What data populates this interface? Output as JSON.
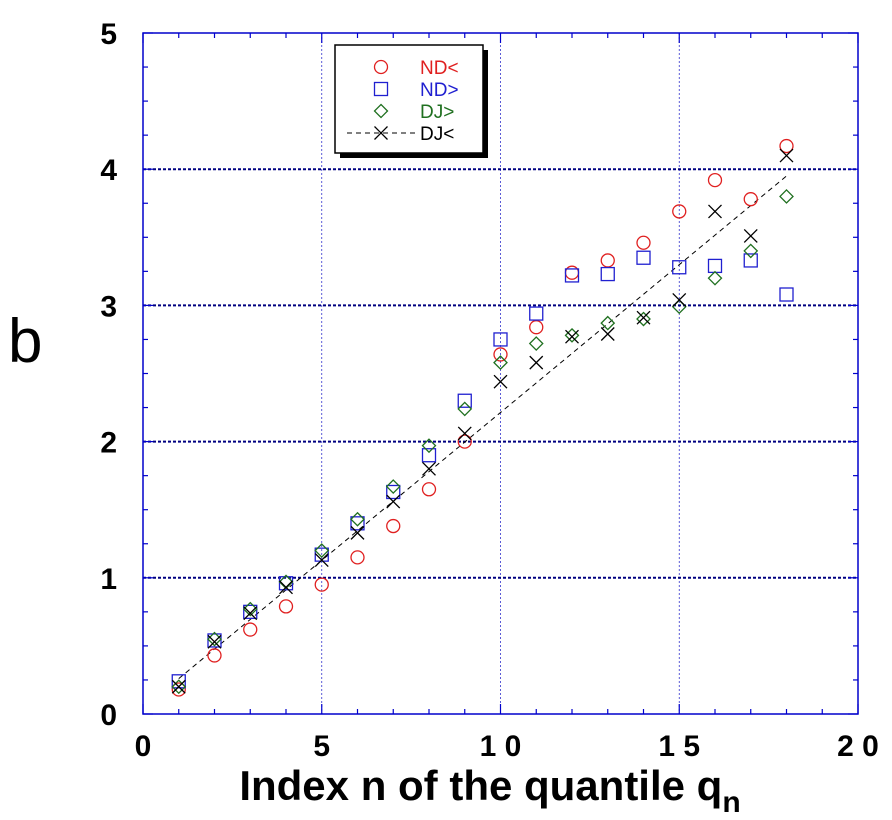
{
  "chart_data": {
    "type": "scatter",
    "xlabel": "Index n of the quantile q",
    "xlabel_subscript": "n",
    "ylabel": "b",
    "xlim": [
      0,
      20
    ],
    "ylim": [
      0,
      5
    ],
    "xticks": [
      0,
      5,
      10,
      15,
      20
    ],
    "xtick_labels": [
      "0",
      "5",
      "1 0",
      "1 5",
      "2 0"
    ],
    "yticks": [
      0,
      1,
      2,
      3,
      4,
      5
    ],
    "ytick_labels": [
      "0",
      "1",
      "2",
      "3",
      "4",
      "5"
    ],
    "grid": true,
    "dashed_major_y": [
      1,
      2,
      3,
      4
    ],
    "legend_position": "top-left",
    "series": [
      {
        "name": "ND<",
        "marker": "circle",
        "color": "#e02020",
        "x": [
          1,
          2,
          3,
          4,
          5,
          6,
          7,
          8,
          9,
          10,
          11,
          12,
          13,
          14,
          15,
          16,
          17,
          18
        ],
        "y": [
          0.18,
          0.43,
          0.62,
          0.79,
          0.95,
          1.15,
          1.38,
          1.65,
          2.0,
          2.64,
          2.84,
          3.24,
          3.33,
          3.46,
          3.69,
          3.92,
          3.78,
          4.17
        ]
      },
      {
        "name": "ND>",
        "marker": "square",
        "color": "#2020d0",
        "x": [
          1,
          2,
          3,
          4,
          5,
          6,
          7,
          8,
          9,
          10,
          11,
          12,
          13,
          14,
          15,
          16,
          17,
          18
        ],
        "y": [
          0.24,
          0.54,
          0.75,
          0.96,
          1.17,
          1.4,
          1.63,
          1.9,
          2.3,
          2.75,
          2.94,
          3.22,
          3.23,
          3.35,
          3.28,
          3.29,
          3.33,
          3.08
        ]
      },
      {
        "name": "DJ>",
        "marker": "diamond",
        "color": "#207020",
        "x": [
          1,
          2,
          3,
          4,
          5,
          6,
          7,
          8,
          9,
          10,
          11,
          12,
          13,
          14,
          15,
          16,
          17,
          18
        ],
        "y": [
          0.2,
          0.55,
          0.77,
          0.97,
          1.2,
          1.43,
          1.67,
          1.97,
          2.24,
          2.58,
          2.72,
          2.78,
          2.87,
          2.9,
          2.99,
          3.2,
          3.4,
          3.8
        ]
      },
      {
        "name": "DJ<",
        "marker": "x",
        "color": "#000000",
        "x": [
          1,
          2,
          3,
          4,
          5,
          6,
          7,
          8,
          9,
          10,
          11,
          12,
          13,
          14,
          15,
          16,
          17,
          18
        ],
        "y": [
          0.2,
          0.53,
          0.74,
          0.93,
          1.13,
          1.33,
          1.56,
          1.8,
          2.06,
          2.44,
          2.58,
          2.77,
          2.79,
          2.91,
          3.04,
          3.69,
          3.51,
          4.1
        ]
      }
    ],
    "fit_line": {
      "series": "DJ<",
      "style": "dashed",
      "color": "#000000",
      "from": [
        1,
        0.26
      ],
      "to": [
        18,
        3.95
      ]
    }
  }
}
